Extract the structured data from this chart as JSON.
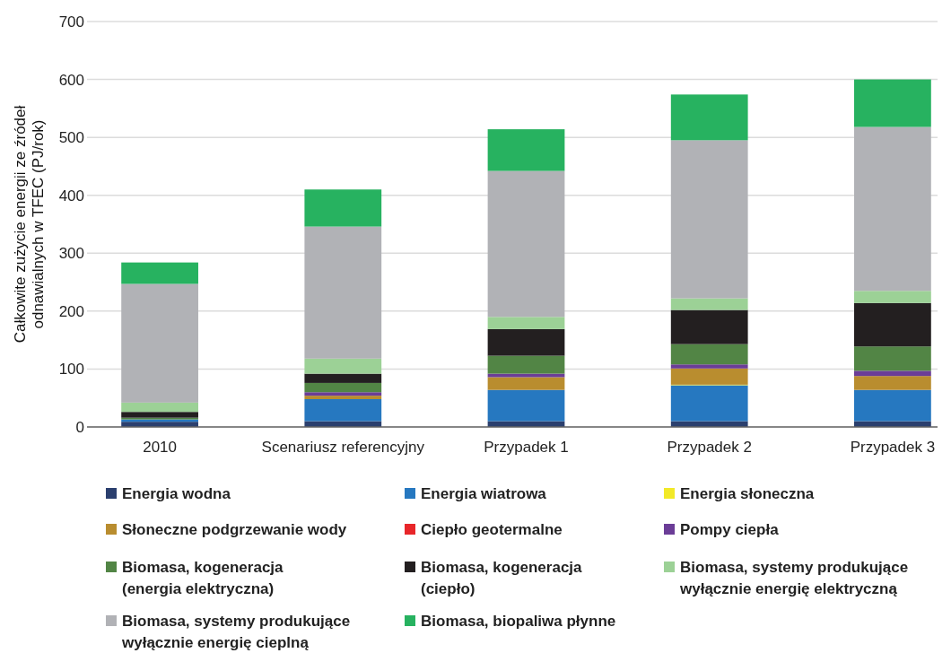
{
  "chart_data": {
    "type": "bar",
    "stacked": true,
    "ylabel": "Całkowite zużycie energii ze źródeł odnawialnych w TFEC (PJ/rok)",
    "categories": [
      "2010",
      "Scenariusz referencyjny",
      "Przypadek 1",
      "Przypadek 2",
      "Przypadek 3"
    ],
    "ylim": [
      0,
      700
    ],
    "yticks": [
      0,
      100,
      200,
      300,
      400,
      500,
      600,
      700
    ],
    "grid": "y",
    "legend": "bottom",
    "series": [
      {
        "name": "Energia wodna",
        "color": "#2b3f6e",
        "values": [
          9,
          10,
          10,
          10,
          10
        ]
      },
      {
        "name": "Energia wiatrowa",
        "color": "#2678c0",
        "values": [
          4,
          38,
          54,
          62,
          54
        ]
      },
      {
        "name": "Energia słoneczna",
        "color": "#f2e928",
        "values": [
          0,
          0,
          0,
          1,
          0
        ]
      },
      {
        "name": "Słoneczne podgrzewanie wody",
        "color": "#b98d2f",
        "values": [
          0,
          6,
          22,
          28,
          24
        ]
      },
      {
        "name": "Ciepło geotermalne",
        "color": "#e8262a",
        "values": [
          0,
          0,
          0,
          0,
          0
        ]
      },
      {
        "name": "Pompy ciepła",
        "color": "#6b3d97",
        "values": [
          0,
          6,
          6,
          7,
          9
        ]
      },
      {
        "name": "Biomasa, kogeneracja (energia elektryczna)",
        "color": "#528545",
        "values": [
          3,
          16,
          31,
          35,
          42
        ]
      },
      {
        "name": "Biomasa, kogeneracja (ciepło)",
        "color": "#231f20",
        "values": [
          10,
          16,
          46,
          59,
          75
        ]
      },
      {
        "name": "Biomasa, systemy produkujące wyłącznie energię elektryczną",
        "color": "#9cd196",
        "values": [
          16,
          26,
          21,
          20,
          21
        ]
      },
      {
        "name": "Biomasa, systemy produkujące wyłącznie energię cieplną",
        "color": "#b1b2b6",
        "values": [
          205,
          228,
          252,
          273,
          283
        ]
      },
      {
        "name": "Biomasa, biopaliwa płynne",
        "color": "#27b260",
        "values": [
          37,
          64,
          72,
          79,
          82
        ]
      }
    ]
  }
}
